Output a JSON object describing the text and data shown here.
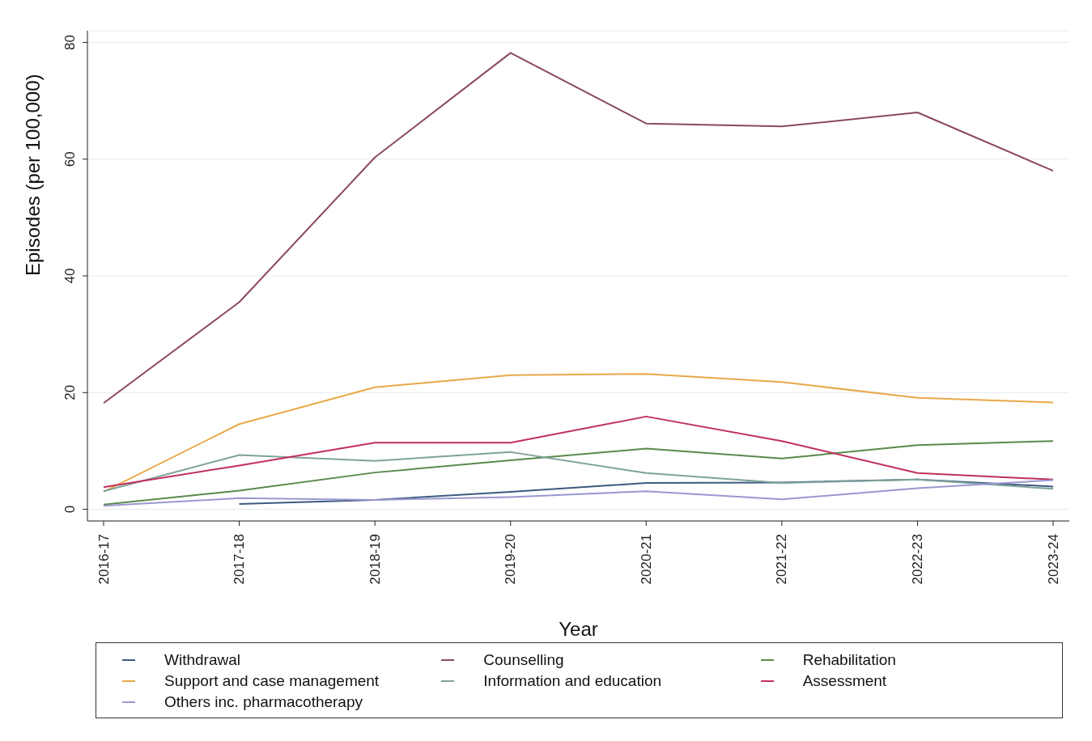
{
  "chart_data": {
    "type": "line",
    "xlabel": "Year",
    "ylabel": "Episodes (per 100,000)",
    "categories": [
      "2016-17",
      "2017-18",
      "2018-19",
      "2019-20",
      "2020-21",
      "2021-22",
      "2022-23",
      "2023-24"
    ],
    "ylim": [
      -2,
      82
    ],
    "yticks": [
      0,
      20,
      40,
      60,
      80
    ],
    "grid": "y",
    "legend": "bottom",
    "marker": "none",
    "line_style": "solid",
    "series": [
      {
        "name": "Withdrawal",
        "color": "#3d5a80",
        "values": [
          null,
          0.9,
          1.6,
          3,
          4.5,
          4.6,
          5.1,
          3.9
        ]
      },
      {
        "name": "Counselling",
        "color": "#8b4a5a",
        "values": [
          18.2,
          35.5,
          60.3,
          78.2,
          66.1,
          65.6,
          68,
          58
        ]
      },
      {
        "name": "Rehabilitation",
        "color": "#5a8a4a",
        "values": [
          0.8,
          3.2,
          6.3,
          8.4,
          10.4,
          8.7,
          11,
          11.7
        ]
      },
      {
        "name": "Support and case management",
        "color": "#e8a848",
        "values": [
          3,
          14.6,
          20.9,
          23,
          23.2,
          21.8,
          19.1,
          18.3
        ]
      },
      {
        "name": "Information and education",
        "color": "#7fa29a",
        "values": [
          3.1,
          9.3,
          8.3,
          9.8,
          6.2,
          4.5,
          5.1,
          3.5
        ]
      },
      {
        "name": "Assessment",
        "color": "#c0305a",
        "values": [
          3.8,
          7.5,
          11.4,
          11.4,
          15.9,
          11.7,
          6.2,
          5.1
        ]
      },
      {
        "name": "Others inc. pharmacotherapy",
        "color": "#9a98d0",
        "values": [
          0.6,
          1.9,
          1.6,
          2.1,
          3.1,
          1.7,
          3.6,
          5
        ]
      }
    ]
  }
}
